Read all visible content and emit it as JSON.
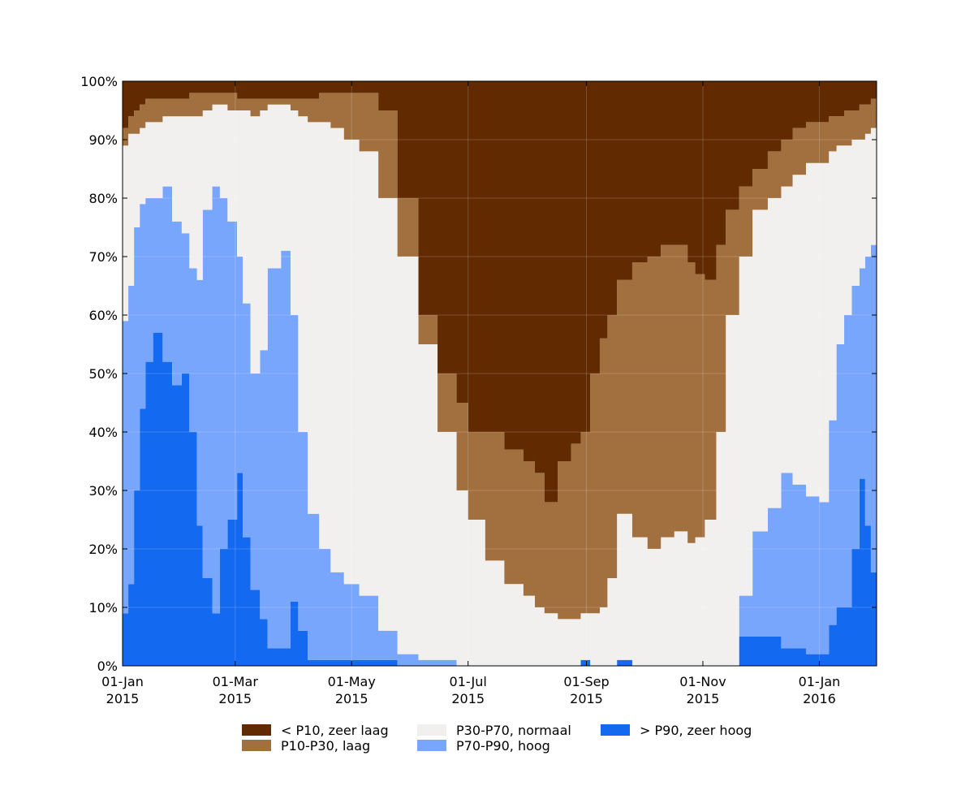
{
  "colors": {
    "zeer_laag": "#612a00",
    "laag": "#a2703e",
    "normaal": "#f2f0ef",
    "hoog": "#78a6fd",
    "zeer_hoog": "#1369ef"
  },
  "chart_data": {
    "type": "area",
    "stacked": true,
    "step": true,
    "ylim": [
      0,
      100
    ],
    "xlim": [
      "2015-01-01",
      "2016-01-31"
    ],
    "y_ticks": [
      0,
      10,
      20,
      30,
      40,
      50,
      60,
      70,
      80,
      90,
      100
    ],
    "y_tick_labels": [
      "0%",
      "10%",
      "20%",
      "30%",
      "40%",
      "50%",
      "60%",
      "70%",
      "80%",
      "90%",
      "100%"
    ],
    "x_ticks": [
      "2015-01-01",
      "2015-03-01",
      "2015-05-01",
      "2015-07-01",
      "2015-09-01",
      "2015-11-01",
      "2016-01-01"
    ],
    "x_tick_labels": [
      [
        "01-Jan",
        "2015"
      ],
      [
        "01-Mar",
        "2015"
      ],
      [
        "01-May",
        "2015"
      ],
      [
        "01-Jul",
        "2015"
      ],
      [
        "01-Sep",
        "2015"
      ],
      [
        "01-Nov",
        "2015"
      ],
      [
        "01-Jan",
        "2016"
      ]
    ],
    "grid": true,
    "legend_position": "bottom",
    "series": [
      {
        "name": "> P90, zeer hoog",
        "color_key": "zeer_hoog"
      },
      {
        "name": "P70-P90, hoog",
        "color_key": "hoog"
      },
      {
        "name": "P30-P70, normaal",
        "color_key": "normaal"
      },
      {
        "name": "P10-P30, laag",
        "color_key": "laag"
      },
      {
        "name": "< P10, zeer laag",
        "color_key": "zeer_laag"
      }
    ],
    "legend_order": [
      "< P10, zeer laag",
      "P10-P30, laag",
      "P30-P70, normaal",
      "P70-P90, hoog",
      "> P90, zeer hoog"
    ],
    "boundaries_note": "cumulative percentage boundaries between classes, by date",
    "boundaries": {
      "dates": [
        "2015-01-01",
        "2015-01-04",
        "2015-01-07",
        "2015-01-10",
        "2015-01-13",
        "2015-01-17",
        "2015-01-22",
        "2015-01-27",
        "2015-02-01",
        "2015-02-05",
        "2015-02-09",
        "2015-02-12",
        "2015-02-17",
        "2015-02-21",
        "2015-02-25",
        "2015-03-02",
        "2015-03-05",
        "2015-03-09",
        "2015-03-14",
        "2015-03-18",
        "2015-03-25",
        "2015-03-30",
        "2015-04-03",
        "2015-04-08",
        "2015-04-14",
        "2015-04-20",
        "2015-04-27",
        "2015-05-05",
        "2015-05-15",
        "2015-05-25",
        "2015-06-05",
        "2015-06-15",
        "2015-06-25",
        "2015-07-01",
        "2015-07-10",
        "2015-07-20",
        "2015-07-30",
        "2015-08-05",
        "2015-08-10",
        "2015-08-17",
        "2015-08-24",
        "2015-08-29",
        "2015-09-03",
        "2015-09-08",
        "2015-09-12",
        "2015-09-17",
        "2015-09-25",
        "2015-10-03",
        "2015-10-10",
        "2015-10-17",
        "2015-10-24",
        "2015-10-28",
        "2015-11-02",
        "2015-11-08",
        "2015-11-13",
        "2015-11-20",
        "2015-11-27",
        "2015-12-05",
        "2015-12-12",
        "2015-12-18",
        "2015-12-25",
        "2016-01-01",
        "2016-01-06",
        "2016-01-10",
        "2016-01-14",
        "2016-01-18",
        "2016-01-22",
        "2016-01-25",
        "2016-01-28",
        "2016-01-31"
      ],
      "top_zeer_hoog": [
        9,
        14,
        30,
        44,
        52,
        57,
        52,
        48,
        50,
        40,
        24,
        15,
        9,
        20,
        25,
        33,
        22,
        13,
        8,
        3,
        3,
        11,
        6,
        1,
        1,
        1,
        1,
        1,
        1,
        0,
        0,
        0,
        0,
        0,
        0,
        0,
        0,
        0,
        0,
        0,
        0,
        1,
        0,
        0,
        0,
        1,
        0,
        0,
        0,
        0,
        0,
        0,
        0,
        0,
        0,
        5,
        5,
        5,
        3,
        3,
        2,
        2,
        7,
        10,
        10,
        20,
        32,
        24,
        16,
        13
      ],
      "top_hoog": [
        59,
        65,
        75,
        79,
        80,
        80,
        82,
        76,
        74,
        68,
        66,
        78,
        82,
        80,
        76,
        70,
        62,
        50,
        54,
        68,
        71,
        60,
        40,
        26,
        20,
        16,
        14,
        12,
        6,
        2,
        1,
        1,
        0,
        0,
        0,
        0,
        0,
        0,
        0,
        0,
        0,
        1,
        0,
        0,
        0,
        1,
        0,
        0,
        0,
        0,
        0,
        0,
        0,
        0,
        0,
        12,
        23,
        27,
        33,
        31,
        29,
        28,
        42,
        55,
        60,
        65,
        68,
        70,
        72,
        73
      ],
      "top_normaal": [
        89,
        91,
        91,
        92,
        93,
        93,
        94,
        94,
        94,
        94,
        94,
        95,
        96,
        96,
        95,
        95,
        95,
        94,
        95,
        96,
        96,
        95,
        94,
        93,
        93,
        92,
        90,
        88,
        80,
        70,
        55,
        40,
        30,
        25,
        18,
        14,
        12,
        10,
        9,
        8,
        8,
        9,
        9,
        10,
        15,
        26,
        22,
        20,
        22,
        23,
        21,
        22,
        25,
        40,
        60,
        70,
        78,
        80,
        82,
        84,
        86,
        86,
        88,
        89,
        89,
        90,
        90,
        91,
        92,
        92
      ],
      "top_laag": [
        92,
        94,
        95,
        96,
        97,
        97,
        97,
        97,
        97,
        98,
        98,
        98,
        98,
        98,
        98,
        97,
        97,
        97,
        97,
        97,
        97,
        97,
        97,
        97,
        98,
        98,
        98,
        98,
        95,
        80,
        60,
        50,
        45,
        40,
        40,
        37,
        35,
        33,
        28,
        35,
        38,
        40,
        50,
        56,
        60,
        66,
        69,
        70,
        72,
        72,
        69,
        67,
        66,
        72,
        78,
        82,
        85,
        88,
        90,
        92,
        93,
        93,
        94,
        94,
        95,
        95,
        96,
        96,
        97,
        97
      ]
    }
  }
}
